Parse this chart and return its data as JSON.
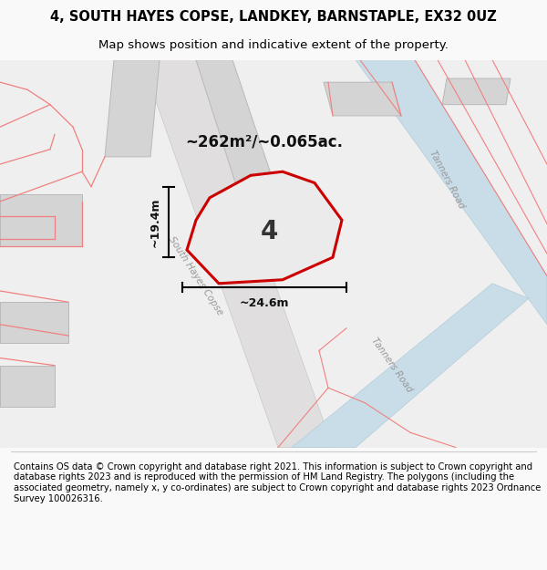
{
  "title": "4, SOUTH HAYES COPSE, LANDKEY, BARNSTAPLE, EX32 0UZ",
  "subtitle": "Map shows position and indicative extent of the property.",
  "footer": "Contains OS data © Crown copyright and database right 2021. This information is subject to Crown copyright and database rights 2023 and is reproduced with the permission of HM Land Registry. The polygons (including the associated geometry, namely x, y co-ordinates) are subject to Crown copyright and database rights 2023 Ordnance Survey 100026316.",
  "area_label": "~262m²/~0.065ac.",
  "plot_number": "4",
  "dim_width": "~24.6m",
  "dim_height": "~19.4m",
  "road_label_sh": "South Hayes Copse",
  "road_label_t1": "Tanners Road",
  "road_label_t2": "Tanners Road",
  "bg_map": "#f0efef",
  "road_fill": "#c9dde8",
  "road_edge": "#b0ccd8",
  "plot_fill": "#e8e8e8",
  "plot_edge": "#cc0000",
  "building_fill": "#d4d4d4",
  "building_edge": "#b8b8b8",
  "pink_line": "#f08080",
  "title_fontsize": 10.5,
  "subtitle_fontsize": 9.5,
  "footer_fontsize": 7.2
}
